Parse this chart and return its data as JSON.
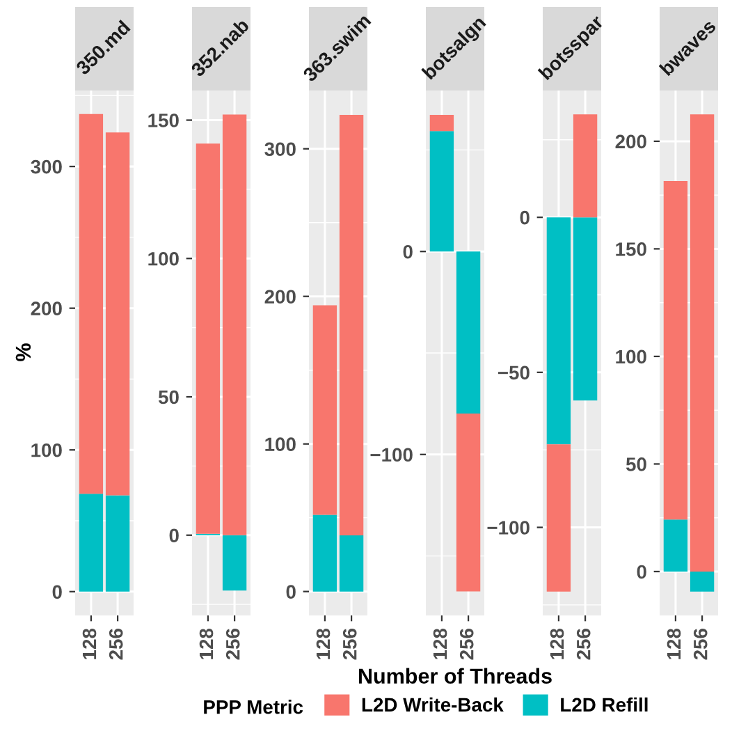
{
  "chart_data": [
    {
      "type": "bar",
      "title": "350.md",
      "categories": [
        "128",
        "256"
      ],
      "stacked": true,
      "ylabel": "%",
      "legend_title": "PPP Metric",
      "legend": "bottom",
      "grid": true,
      "ylim": [
        -16.8,
        353.6
      ],
      "yticks": [
        0,
        100,
        200,
        300
      ],
      "series": [
        {
          "name": "L2D Refill",
          "color": "#00bfc4",
          "values": [
            69,
            68
          ]
        },
        {
          "name": "L2D Write-Back",
          "color": "#f8766d",
          "values": [
            268,
            256
          ]
        }
      ]
    },
    {
      "type": "bar",
      "title": "352.nab",
      "categories": [
        "128",
        "256"
      ],
      "stacked": true,
      "grid": true,
      "ylim": [
        -29,
        160.7
      ],
      "yticks": [
        0,
        50,
        100,
        150
      ],
      "series": [
        {
          "color": "#00bfc4",
          "values": [
            0.5,
            -20
          ]
        },
        {
          "color": "#f8766d",
          "values": [
            141,
            152
          ]
        }
      ]
    },
    {
      "type": "bar",
      "title": "363.swim",
      "categories": [
        "128",
        "256"
      ],
      "stacked": true,
      "grid": true,
      "ylim": [
        -16.2,
        339.5
      ],
      "yticks": [
        0,
        100,
        200,
        300
      ],
      "series": [
        {
          "color": "#00bfc4",
          "values": [
            52,
            38
          ]
        },
        {
          "color": "#f8766d",
          "values": [
            142,
            285
          ]
        }
      ]
    },
    {
      "type": "bar",
      "title": "botsalgn",
      "categories": [
        "128",
        "256"
      ],
      "stacked": true,
      "xlabel": "Number of Threads",
      "grid": true,
      "ylim": [
        -179.3,
        79.3
      ],
      "yticks": [
        -100,
        0
      ],
      "series": [
        {
          "color": "#00bfc4",
          "values": [
            59.3,
            -79.8
          ]
        },
        {
          "color": "#f8766d",
          "values": [
            8,
            -87.7
          ]
        }
      ]
    },
    {
      "type": "bar",
      "title": "botsspar",
      "categories": [
        "128",
        "256"
      ],
      "stacked": true,
      "grid": true,
      "ylim": [
        -128.4,
        40.9
      ],
      "yticks": [
        -100,
        -50,
        0
      ],
      "series": [
        {
          "color": "#00bfc4",
          "values": [
            -73.2,
            -59.1
          ]
        },
        {
          "color": "#f8766d",
          "values": [
            -47.5,
            33.2
          ]
        }
      ]
    },
    {
      "type": "bar",
      "title": "bwaves",
      "categories": [
        "128",
        "256"
      ],
      "stacked": true,
      "grid": true,
      "ylim": [
        -20.4,
        223.6
      ],
      "yticks": [
        0,
        50,
        100,
        150,
        200
      ],
      "series": [
        {
          "color": "#00bfc4",
          "values": [
            24.2,
            -9.3
          ]
        },
        {
          "color": "#f8766d",
          "values": [
            157.3,
            212.5
          ]
        }
      ]
    }
  ]
}
